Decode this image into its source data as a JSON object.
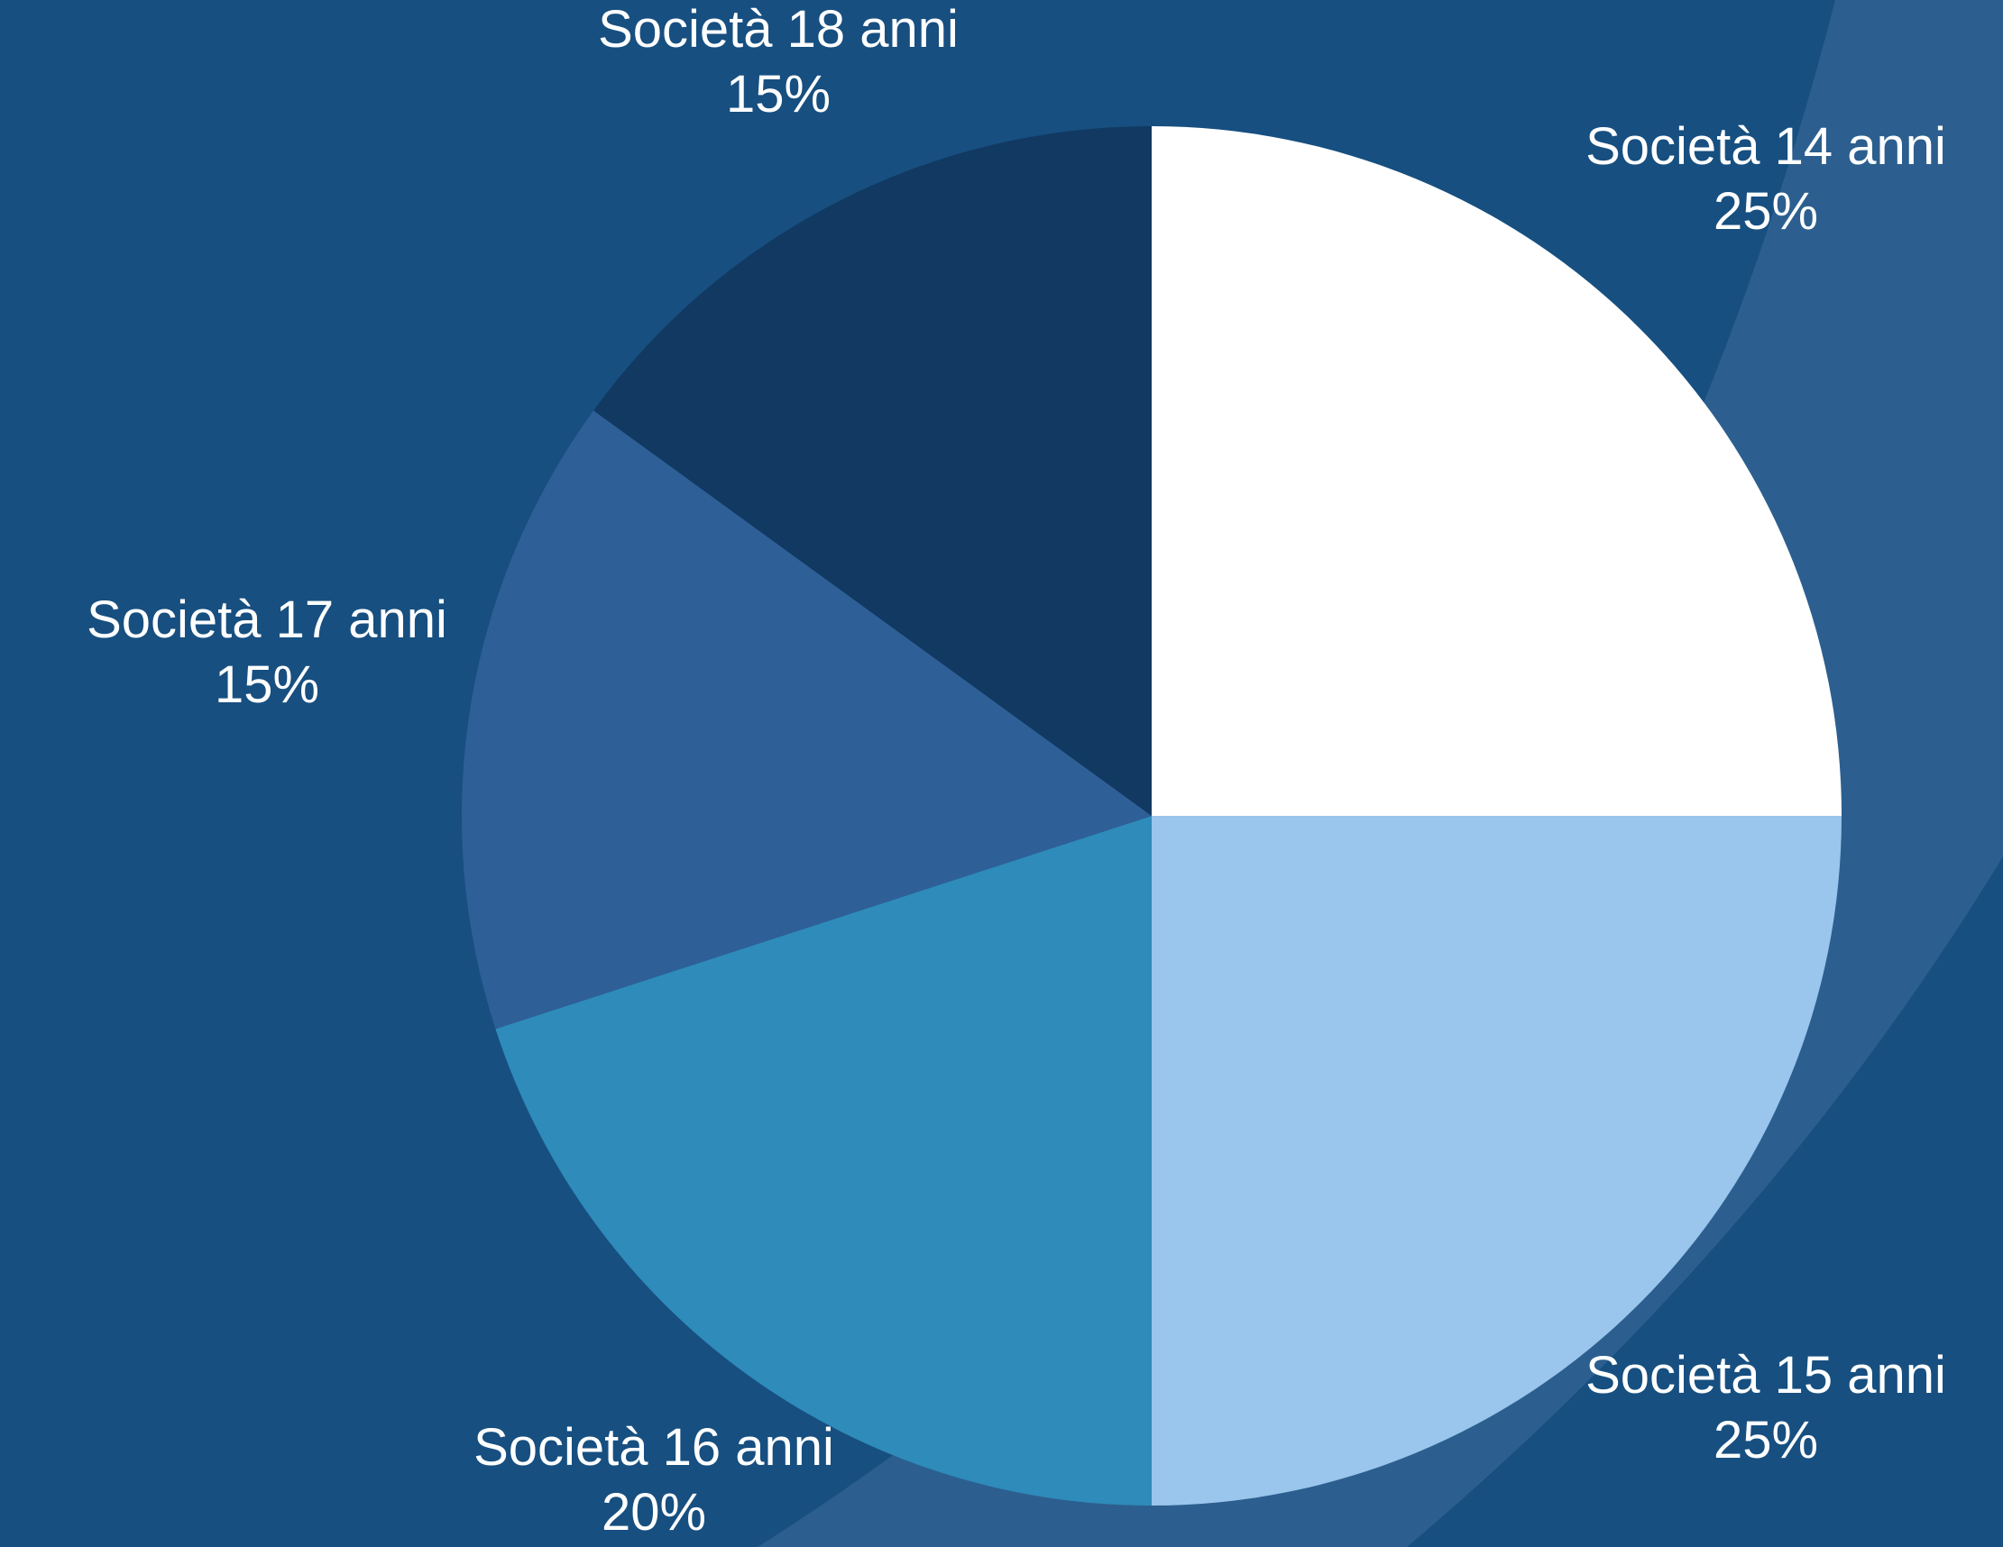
{
  "chart_data": {
    "type": "pie",
    "categories": [
      "Società 14 anni",
      "Società 15 anni",
      "Società 16 anni",
      "Società 17 anni",
      "Società 18 anni"
    ],
    "values": [
      25,
      25,
      20,
      15,
      15
    ],
    "value_labels": [
      "25%",
      "25%",
      "20%",
      "15%",
      "15%"
    ],
    "colors": [
      "#ffffff",
      "#9ac5ec",
      "#2e8bba",
      "#2f5f97",
      "#113961"
    ],
    "start_angle_deg": 0,
    "direction": "clockwise",
    "legend": "none",
    "title": ""
  },
  "background": {
    "base_color": "#174f80",
    "band_color": "#2c5f8f"
  }
}
